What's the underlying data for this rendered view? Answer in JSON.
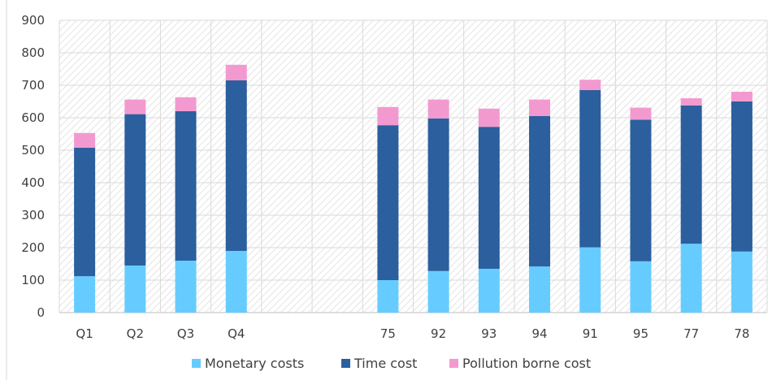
{
  "chart_data": {
    "type": "bar",
    "stacked": true,
    "categories": [
      "Q1",
      "Q2",
      "Q3",
      "Q4",
      "",
      "",
      "75",
      "92",
      "93",
      "94",
      "91",
      "95",
      "77",
      "78"
    ],
    "series": [
      {
        "name": "Monetary costs",
        "color": "#66CCFF",
        "values": [
          112,
          145,
          160,
          190,
          null,
          null,
          100,
          128,
          135,
          142,
          201,
          158,
          212,
          188
        ]
      },
      {
        "name": "Time cost",
        "color": "#2B5F9E",
        "values": [
          396,
          466,
          460,
          525,
          null,
          null,
          477,
          470,
          437,
          463,
          484,
          436,
          426,
          462
        ]
      },
      {
        "name": "Pollution borne cost",
        "color": "#F29ACF",
        "values": [
          45,
          45,
          43,
          48,
          null,
          null,
          56,
          58,
          56,
          51,
          32,
          37,
          22,
          30
        ]
      }
    ],
    "ylim": [
      0,
      900
    ],
    "yticks": [
      0,
      100,
      200,
      300,
      400,
      500,
      600,
      700,
      800,
      900
    ],
    "grid": true,
    "legend_position": "bottom",
    "title": "",
    "xlabel": "",
    "ylabel": ""
  }
}
